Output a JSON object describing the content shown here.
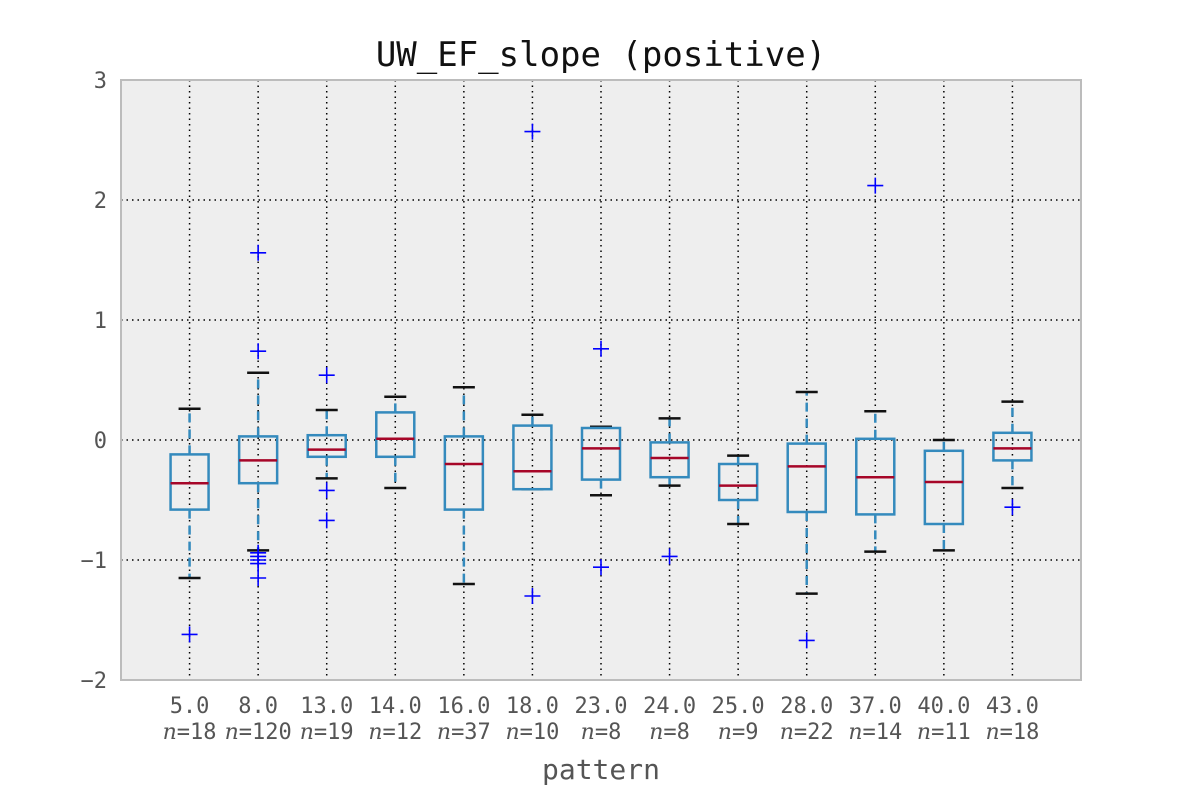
{
  "chart_data": {
    "type": "box",
    "title": "UW_EF_slope (positive)",
    "xlabel": "pattern",
    "ylabel": "",
    "ylim": [
      -2,
      3
    ],
    "yticks": [
      -2,
      -1,
      0,
      1,
      2,
      3
    ],
    "ytick_labels": [
      "−2",
      "−1",
      "0",
      "1",
      "2",
      "3"
    ],
    "grid": true,
    "colors": {
      "box": "#348ABD",
      "median": "#A60628",
      "whisker_cap": "#111111",
      "flier": "#0000FF",
      "plot_bg": "#EEEEEE",
      "spine": "#BCBCBC",
      "grid": "#000000"
    },
    "categories": [
      "5.0",
      "8.0",
      "13.0",
      "14.0",
      "16.0",
      "18.0",
      "23.0",
      "24.0",
      "25.0",
      "28.0",
      "37.0",
      "40.0",
      "43.0"
    ],
    "counts": [
      "=18",
      "=120",
      "=19",
      "=12",
      "=37",
      "=10",
      "=8",
      "=8",
      "=9",
      "=22",
      "=14",
      "=11",
      "=18"
    ],
    "count_prefix": "n",
    "boxes": [
      {
        "low": -1.15,
        "q1": -0.58,
        "median": -0.36,
        "q3": -0.12,
        "high": 0.26,
        "fliers": [
          -1.62
        ]
      },
      {
        "low": -0.92,
        "q1": -0.36,
        "median": -0.17,
        "q3": 0.03,
        "high": 0.56,
        "fliers": [
          1.56,
          0.74,
          -0.94,
          -0.97,
          -1.0,
          -1.03,
          -1.15
        ]
      },
      {
        "low": -0.32,
        "q1": -0.14,
        "median": -0.08,
        "q3": 0.04,
        "high": 0.25,
        "fliers": [
          0.54,
          -0.42,
          -0.67
        ]
      },
      {
        "low": -0.4,
        "q1": -0.14,
        "median": 0.01,
        "q3": 0.23,
        "high": 0.36,
        "fliers": []
      },
      {
        "low": -1.2,
        "q1": -0.58,
        "median": -0.2,
        "q3": 0.03,
        "high": 0.44,
        "fliers": []
      },
      {
        "low": -0.41,
        "q1": -0.41,
        "median": -0.26,
        "q3": 0.12,
        "high": 0.21,
        "fliers": [
          2.57,
          -1.3
        ]
      },
      {
        "low": -0.46,
        "q1": -0.33,
        "median": -0.07,
        "q3": 0.1,
        "high": 0.11,
        "fliers": [
          0.76,
          -1.06
        ]
      },
      {
        "low": -0.38,
        "q1": -0.31,
        "median": -0.15,
        "q3": -0.02,
        "high": 0.18,
        "fliers": [
          -0.97
        ]
      },
      {
        "low": -0.7,
        "q1": -0.5,
        "median": -0.38,
        "q3": -0.2,
        "high": -0.13,
        "fliers": []
      },
      {
        "low": -1.28,
        "q1": -0.6,
        "median": -0.22,
        "q3": -0.03,
        "high": 0.4,
        "fliers": [
          -1.67
        ]
      },
      {
        "low": -0.93,
        "q1": -0.62,
        "median": -0.31,
        "q3": 0.01,
        "high": 0.24,
        "fliers": [
          2.12
        ]
      },
      {
        "low": -0.92,
        "q1": -0.7,
        "median": -0.35,
        "q3": -0.09,
        "high": 0.0,
        "fliers": []
      },
      {
        "low": -0.4,
        "q1": -0.17,
        "median": -0.07,
        "q3": 0.06,
        "high": 0.32,
        "fliers": [
          -0.56
        ]
      }
    ]
  }
}
